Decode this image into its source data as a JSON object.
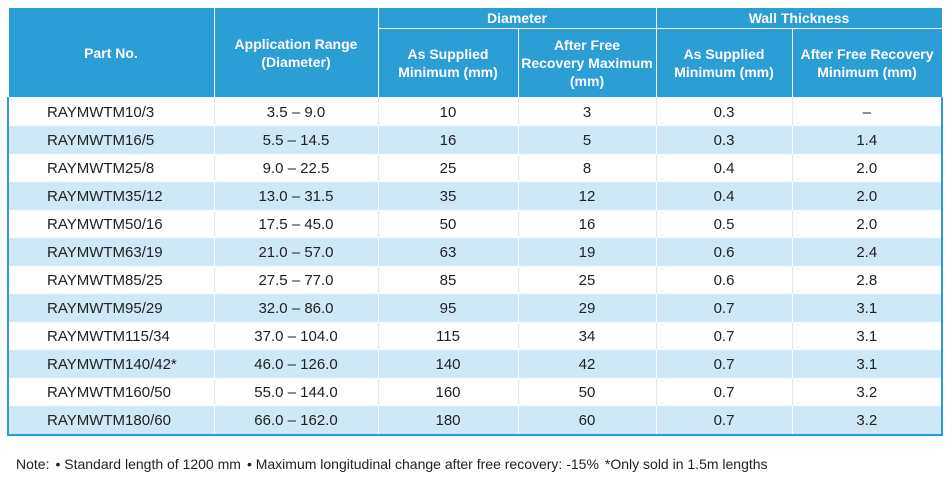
{
  "table": {
    "headers": {
      "part_no": "Part No.",
      "application_range": "Application Range (Diameter)",
      "diameter_group": "Diameter",
      "wall_group": "Wall Thickness",
      "dia_supplied": "As Supplied Minimum (mm)",
      "dia_recovery": "After Free Recovery Maximum (mm)",
      "wall_supplied": "As Supplied Minimum (mm)",
      "wall_recovery": "After Free Recovery Minimum (mm)"
    },
    "rows": [
      [
        "RAYMWTM10/3",
        "3.5 – 9.0",
        "10",
        "3",
        "0.3",
        "–"
      ],
      [
        "RAYMWTM16/5",
        "5.5 – 14.5",
        "16",
        "5",
        "0.3",
        "1.4"
      ],
      [
        "RAYMWTM25/8",
        "9.0 – 22.5",
        "25",
        "8",
        "0.4",
        "2.0"
      ],
      [
        "RAYMWTM35/12",
        "13.0 – 31.5",
        "35",
        "12",
        "0.4",
        "2.0"
      ],
      [
        "RAYMWTM50/16",
        "17.5 – 45.0",
        "50",
        "16",
        "0.5",
        "2.0"
      ],
      [
        "RAYMWTM63/19",
        "21.0 – 57.0",
        "63",
        "19",
        "0.6",
        "2.4"
      ],
      [
        "RAYMWTM85/25",
        "27.5 – 77.0",
        "85",
        "25",
        "0.6",
        "2.8"
      ],
      [
        "RAYMWTM95/29",
        "32.0 – 86.0",
        "95",
        "29",
        "0.7",
        "3.1"
      ],
      [
        "RAYMWTM115/34",
        "37.0 – 104.0",
        "115",
        "34",
        "0.7",
        "3.1"
      ],
      [
        "RAYMWTM140/42*",
        "46.0 – 126.0",
        "140",
        "42",
        "0.7",
        "3.1"
      ],
      [
        "RAYMWTM160/50",
        "55.0 – 144.0",
        "160",
        "50",
        "0.7",
        "3.2"
      ],
      [
        "RAYMWTM180/60",
        "66.0 – 162.0",
        "180",
        "60",
        "0.7",
        "3.2"
      ]
    ]
  },
  "note": {
    "prefix": "Note:",
    "item1": "• Standard length of 1200 mm",
    "item2": "• Maximum longitudinal change after free recovery: -15%",
    "item3": "*Only sold in 1.5m lengths"
  },
  "colors": {
    "header_bg": "#2c9ed6",
    "row_alt_bg": "#cfe8f6",
    "text": "#222222"
  }
}
